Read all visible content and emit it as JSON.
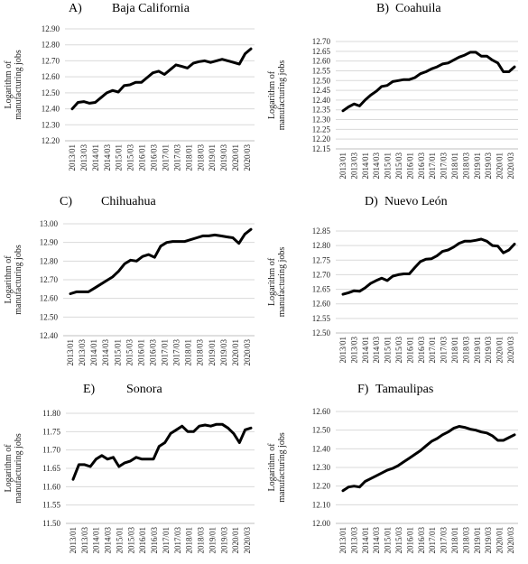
{
  "chart_data": [
    {
      "id": "baja",
      "type": "line",
      "letter": "A)",
      "title": "Baja California",
      "ylabel": [
        "Logarithm of",
        "manufacturing jobs"
      ],
      "ylim": [
        12.2,
        12.9
      ],
      "yticks": [
        12.2,
        12.3,
        12.4,
        12.5,
        12.6,
        12.7,
        12.8,
        12.9
      ],
      "xticks": [
        "2013/01",
        "2013/03",
        "2014/01",
        "2014/03",
        "2015/01",
        "2015/03",
        "2016/01",
        "2016/03",
        "2017/01",
        "2017/03",
        "2018/01",
        "2018/03",
        "2019/01",
        "2019/03",
        "2020/01",
        "2020/03"
      ],
      "series": [
        {
          "values": [
            12.4,
            12.44,
            12.445,
            12.435,
            12.44,
            12.47,
            12.5,
            12.515,
            12.505,
            12.545,
            12.55,
            12.565,
            12.565,
            12.595,
            12.625,
            12.635,
            12.615,
            12.645,
            12.675,
            12.665,
            12.655,
            12.685,
            12.695,
            12.7,
            12.69,
            12.7,
            12.71,
            12.7,
            12.69,
            12.68,
            12.745,
            12.775
          ]
        }
      ]
    },
    {
      "id": "coahuila",
      "type": "line",
      "letter": "B)",
      "title": "Coahuila",
      "ylabel": [
        "Logarithm of",
        "manufacturing jobs"
      ],
      "ylim": [
        12.15,
        12.7
      ],
      "yticks": [
        12.15,
        12.2,
        12.25,
        12.3,
        12.35,
        12.4,
        12.45,
        12.5,
        12.55,
        12.6,
        12.65,
        12.7
      ],
      "xticks": [
        "2013/01",
        "2013/03",
        "2014/01",
        "2014/03",
        "2015/01",
        "2015/03",
        "2016/01",
        "2016/03",
        "2017/01",
        "2017/03",
        "2018/01",
        "2018/03",
        "2019/01",
        "2019/03",
        "2020/01",
        "2020/03"
      ],
      "series": [
        {
          "values": [
            12.345,
            12.365,
            12.38,
            12.37,
            12.4,
            12.425,
            12.445,
            12.47,
            12.475,
            12.495,
            12.5,
            12.505,
            12.505,
            12.515,
            12.535,
            12.545,
            12.56,
            12.57,
            12.585,
            12.59,
            12.605,
            12.62,
            12.63,
            12.645,
            12.645,
            12.625,
            12.625,
            12.605,
            12.59,
            12.545,
            12.545,
            12.57
          ]
        }
      ]
    },
    {
      "id": "chihuahua",
      "type": "line",
      "letter": "C)",
      "title": "Chihuahua",
      "ylabel": [
        "Logarithm of",
        "manufacturing jobs"
      ],
      "ylim": [
        12.4,
        13.0
      ],
      "yticks": [
        12.4,
        12.5,
        12.6,
        12.7,
        12.8,
        12.9,
        13.0
      ],
      "xticks": [
        "2013/01",
        "2013/03",
        "2014/01",
        "2014/03",
        "2015/01",
        "2015/03",
        "2016/01",
        "2016/03",
        "2017/01",
        "2017/03",
        "2018/01",
        "2018/03",
        "2019/01",
        "2019/03",
        "2020/01",
        "2020/03"
      ],
      "series": [
        {
          "values": [
            12.625,
            12.635,
            12.635,
            12.635,
            12.655,
            12.675,
            12.695,
            12.715,
            12.745,
            12.785,
            12.805,
            12.8,
            12.825,
            12.835,
            12.82,
            12.88,
            12.9,
            12.905,
            12.905,
            12.905,
            12.915,
            12.925,
            12.935,
            12.935,
            12.94,
            12.935,
            12.93,
            12.925,
            12.895,
            12.945,
            12.97
          ]
        }
      ]
    },
    {
      "id": "nuevoleon",
      "type": "line",
      "letter": "D)",
      "title": "Nuevo León",
      "ylabel": [
        "Logarithm of",
        "manufacturing jobs"
      ],
      "ylim": [
        12.5,
        12.85
      ],
      "yticks": [
        12.5,
        12.55,
        12.6,
        12.65,
        12.7,
        12.75,
        12.8,
        12.85
      ],
      "xticks": [
        "2013/01",
        "2013/03",
        "2014/01",
        "2014/03",
        "2015/01",
        "2015/03",
        "2016/01",
        "2016/03",
        "2017/01",
        "2017/03",
        "2018/01",
        "2018/03",
        "2019/01",
        "2019/03",
        "2020/01",
        "2020/03"
      ],
      "series": [
        {
          "values": [
            12.633,
            12.638,
            12.645,
            12.643,
            12.655,
            12.67,
            12.68,
            12.688,
            12.68,
            12.695,
            12.7,
            12.703,
            12.703,
            12.725,
            12.745,
            12.753,
            12.755,
            12.765,
            12.78,
            12.785,
            12.795,
            12.808,
            12.815,
            12.815,
            12.818,
            12.822,
            12.815,
            12.8,
            12.798,
            12.775,
            12.785,
            12.805
          ]
        }
      ]
    },
    {
      "id": "sonora",
      "type": "line",
      "letter": "E)",
      "title": "Sonora",
      "ylabel": [
        "Logarithm of",
        "manufacturing jobs"
      ],
      "ylim": [
        11.5,
        11.8
      ],
      "yticks": [
        11.5,
        11.55,
        11.6,
        11.65,
        11.7,
        11.75,
        11.8
      ],
      "xticks": [
        "2013/01",
        "2013/03",
        "2014/01",
        "2014/03",
        "2015/01",
        "2015/03",
        "2016/01",
        "2016/03",
        "2017/01",
        "2017/03",
        "2018/01",
        "2018/03",
        "2019/01",
        "2019/03",
        "2020/01",
        "2020/03"
      ],
      "series": [
        {
          "values": [
            11.62,
            11.66,
            11.66,
            11.655,
            11.675,
            11.685,
            11.675,
            11.68,
            11.655,
            11.665,
            11.67,
            11.68,
            11.675,
            11.675,
            11.675,
            11.71,
            11.72,
            11.745,
            11.755,
            11.765,
            11.75,
            11.75,
            11.765,
            11.768,
            11.765,
            11.77,
            11.77,
            11.76,
            11.745,
            11.72,
            11.755,
            11.76
          ]
        }
      ]
    },
    {
      "id": "tamaulipas",
      "type": "line",
      "letter": "F)",
      "title": "Tamaulipas",
      "ylabel": [
        "Logarithm of",
        "manufacturing jobs"
      ],
      "ylim": [
        12.0,
        12.6
      ],
      "yticks": [
        12.0,
        12.1,
        12.2,
        12.3,
        12.4,
        12.5,
        12.6
      ],
      "xticks": [
        "2013/01",
        "2013/03",
        "2014/01",
        "2014/03",
        "2015/01",
        "2015/03",
        "2016/01",
        "2016/03",
        "2017/01",
        "2017/03",
        "2018/01",
        "2018/03",
        "2019/01",
        "2019/03",
        "2020/01",
        "2020/03"
      ],
      "series": [
        {
          "values": [
            12.175,
            12.195,
            12.2,
            12.195,
            12.225,
            12.24,
            12.255,
            12.27,
            12.285,
            12.295,
            12.31,
            12.33,
            12.35,
            12.37,
            12.39,
            12.415,
            12.44,
            12.455,
            12.475,
            12.49,
            12.51,
            12.52,
            12.515,
            12.505,
            12.5,
            12.49,
            12.485,
            12.47,
            12.445,
            12.445,
            12.46,
            12.475
          ]
        }
      ]
    }
  ]
}
